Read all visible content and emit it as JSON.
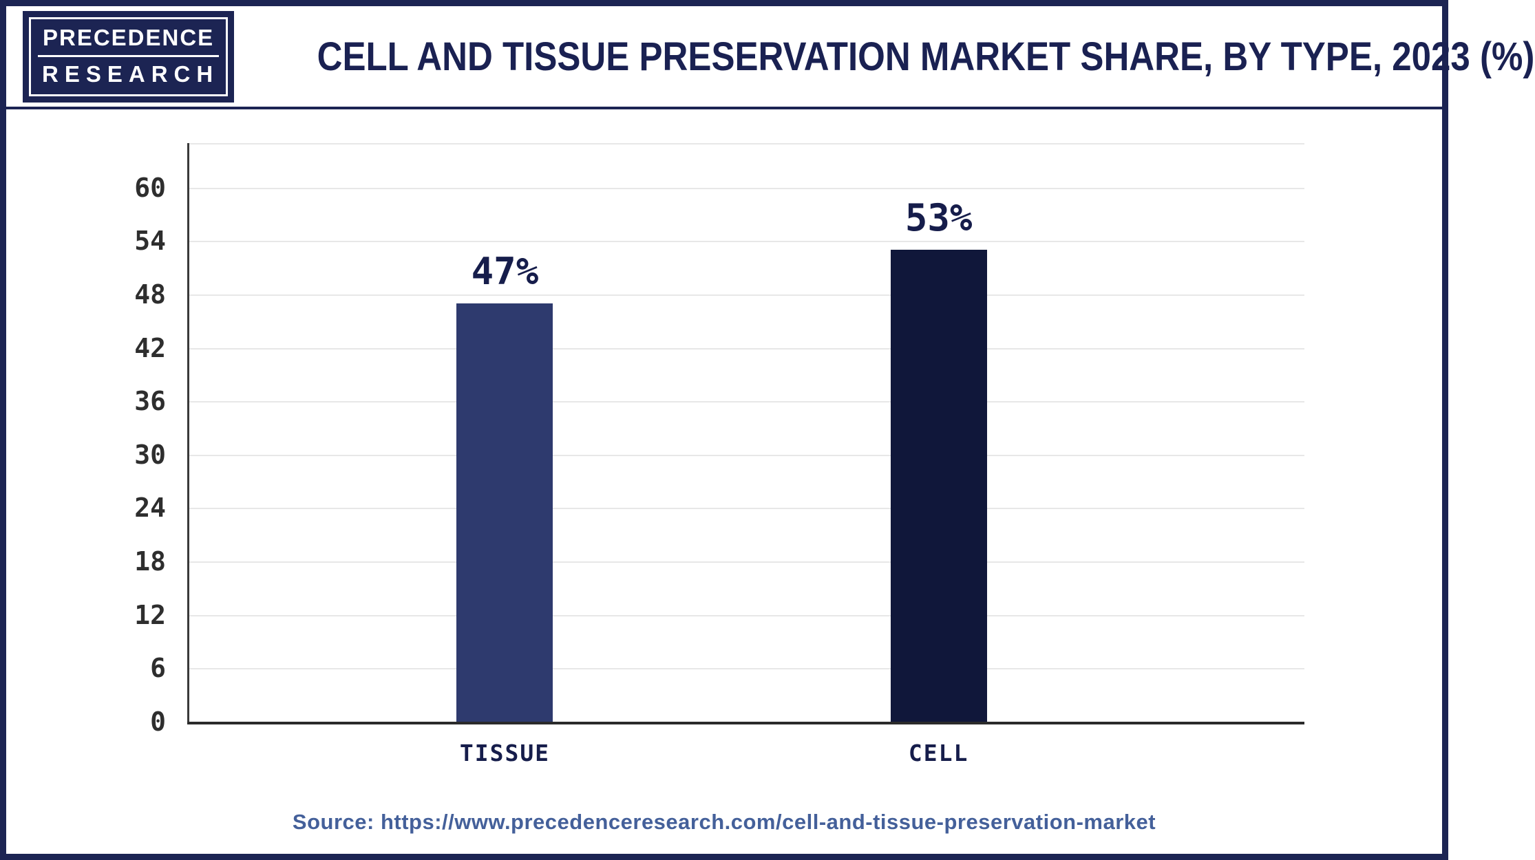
{
  "logo": {
    "line1": "PRECEDENCE",
    "line2": "RESEARCH"
  },
  "header": {
    "title": "CELL AND TISSUE PRESERVATION MARKET SHARE, BY TYPE, 2023 (%)"
  },
  "chart_data": {
    "type": "bar",
    "title": "CELL AND TISSUE PRESERVATION MARKET SHARE, BY TYPE, 2023 (%)",
    "categories": [
      "TISSUE",
      "CELL"
    ],
    "values": [
      47,
      53
    ],
    "value_labels": [
      "47%",
      "53%"
    ],
    "xlabel": "",
    "ylabel": "",
    "ylim": [
      0,
      65
    ],
    "yticks": [
      0,
      6,
      12,
      18,
      24,
      30,
      36,
      42,
      48,
      54,
      60
    ],
    "grid": true,
    "legend": "none",
    "bar_colors": [
      "#2e3a6e",
      "#10173a"
    ],
    "value_label_color": "#161d4b",
    "category_label_color": "#161d4b"
  },
  "source": {
    "label": "Source:",
    "url": "https://www.precedenceresearch.com/cell-and-tissue-preservation-market"
  },
  "colors": {
    "frame": "#1c2453",
    "title_text": "#1a2152",
    "gridline": "#e7e7e7",
    "axis": "#2b2b2b",
    "source_text": "#44609a",
    "logo_background": "#1c2453",
    "logo_text": "#ffffff"
  }
}
